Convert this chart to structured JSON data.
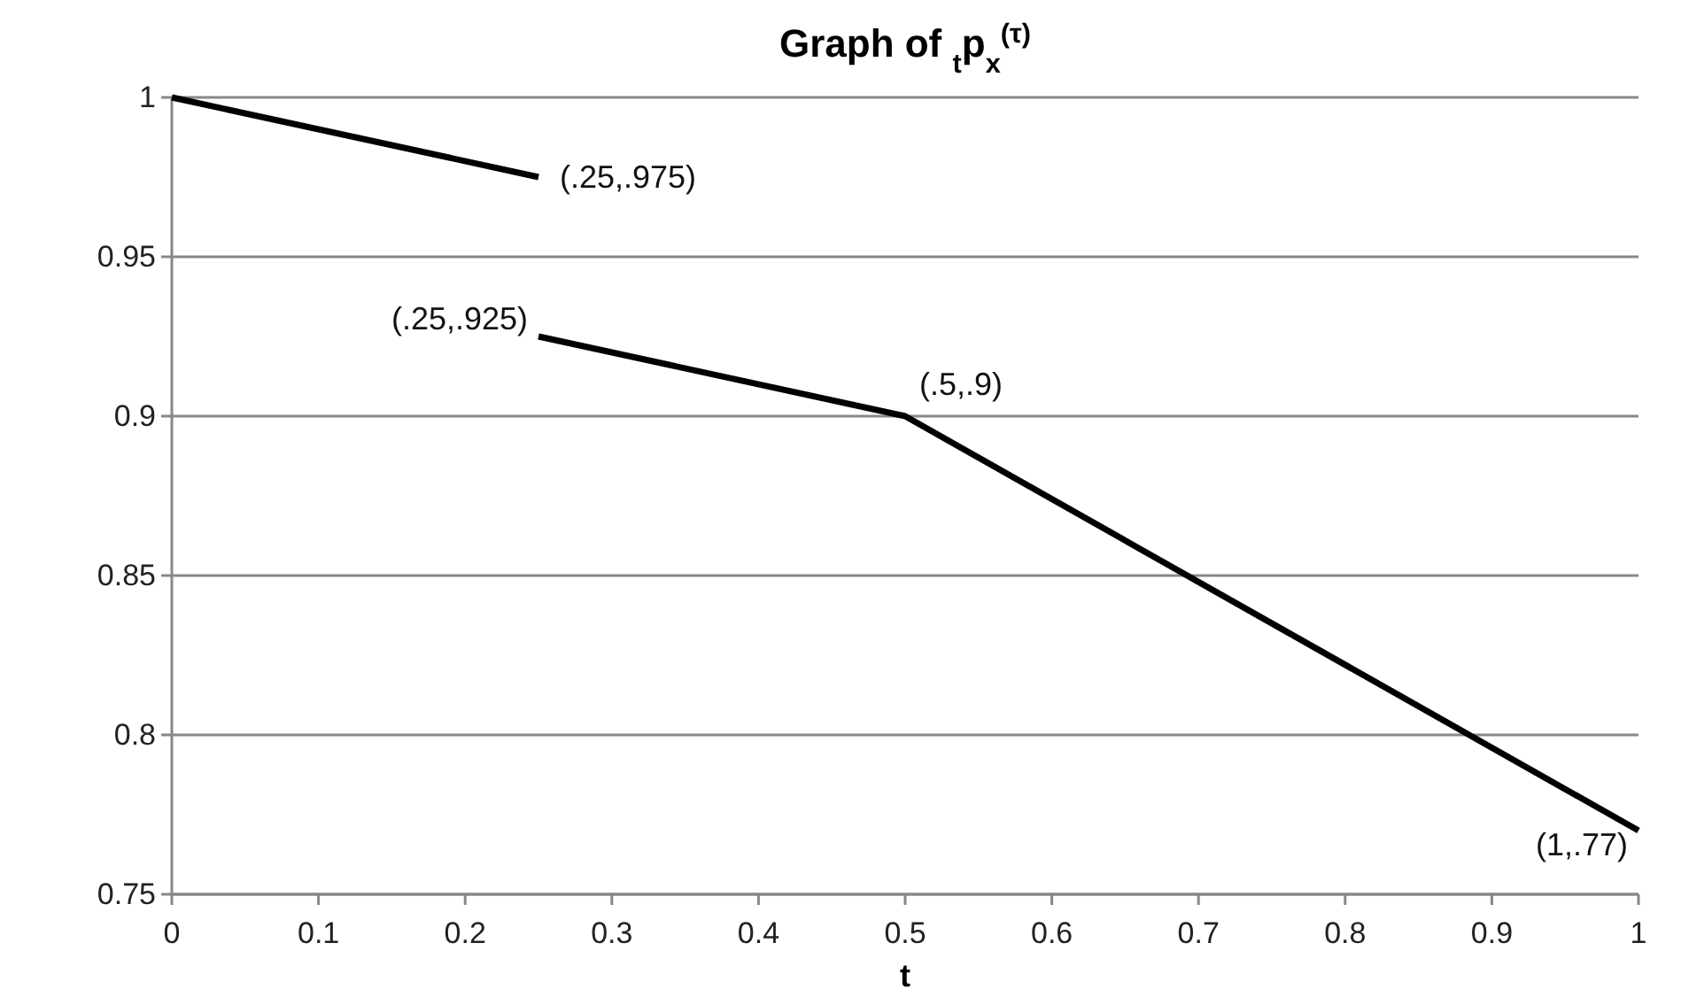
{
  "chart_data": {
    "type": "line",
    "title": "Graph of $_{t}$p$_{x}$$^{(τ)}$",
    "xlabel": "t",
    "xlim": [
      0,
      1
    ],
    "xticks": [
      0,
      0.1,
      0.2,
      0.3,
      0.4,
      0.5,
      0.6,
      0.7,
      0.8,
      0.9,
      1
    ],
    "ylim": [
      0.75,
      1
    ],
    "yticks": [
      0.75,
      0.8,
      0.85,
      0.9,
      0.95,
      1
    ],
    "grid": "y",
    "marker": "none",
    "line_style": "solid",
    "series": [
      {
        "color": "#000000",
        "x": [
          0,
          0.25
        ],
        "values": [
          1,
          0.975
        ]
      },
      {
        "color": "#000000",
        "x": [
          0.25,
          0.5,
          1
        ],
        "values": [
          0.925,
          0.9,
          0.77
        ]
      }
    ],
    "annotations": [
      {
        "text": "(.25,.975)",
        "x": 0.25,
        "y": 0.975
      },
      {
        "text": "(.25,.925)",
        "x": 0.25,
        "y": 0.925
      },
      {
        "text": "(.5,.9)",
        "x": 0.5,
        "y": 0.9
      },
      {
        "text": "(1,.77)",
        "x": 1,
        "y": 0.77
      }
    ]
  }
}
